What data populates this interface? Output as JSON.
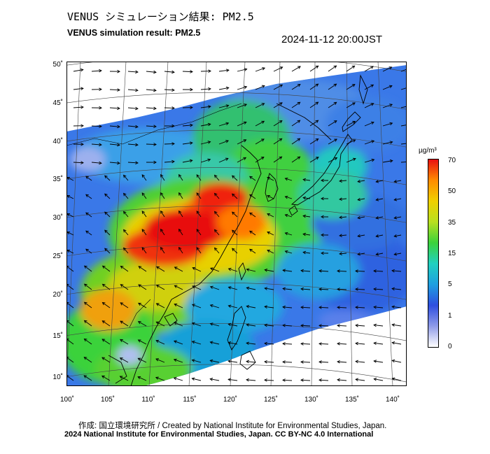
{
  "header": {
    "title_jp": "VENUS シミュレーション結果: PM2.5",
    "title_en": "VENUS simulation result: PM2.5",
    "timestamp": "2024-11-12 20:00JST"
  },
  "map": {
    "lat_labels": [
      "50˚",
      "45˚",
      "40˚",
      "35˚",
      "30˚",
      "25˚",
      "20˚",
      "15˚",
      "10˚"
    ],
    "lon_labels": [
      "100˚",
      "105˚",
      "110˚",
      "115˚",
      "120˚",
      "125˚",
      "130˚",
      "135˚",
      "140˚"
    ],
    "lat_range": [
      9,
      51
    ],
    "lon_range": [
      100,
      141
    ],
    "colors": {
      "ocean_low": "#3a6fe0",
      "land_frame": "#ffffff",
      "coast": "#000000"
    }
  },
  "colorbar": {
    "unit": "µg/m³",
    "ticks": [
      "70",
      "50",
      "35",
      "15",
      "5",
      "1",
      "0"
    ],
    "stops": [
      "#ffffff",
      "#8f9be8",
      "#2f4fe0",
      "#1e9fe0",
      "#20d0c0",
      "#3bd23b",
      "#b8e020",
      "#f0d000",
      "#ff8c00",
      "#e81010"
    ]
  },
  "footer": {
    "credit_jp_en": "作成: 国立環境研究所 / Created by National Institute for Environmental Studies, Japan.",
    "copyright": "2024 National Institute for Environmental Studies, Japan. CC BY-NC 4.0 International"
  }
}
